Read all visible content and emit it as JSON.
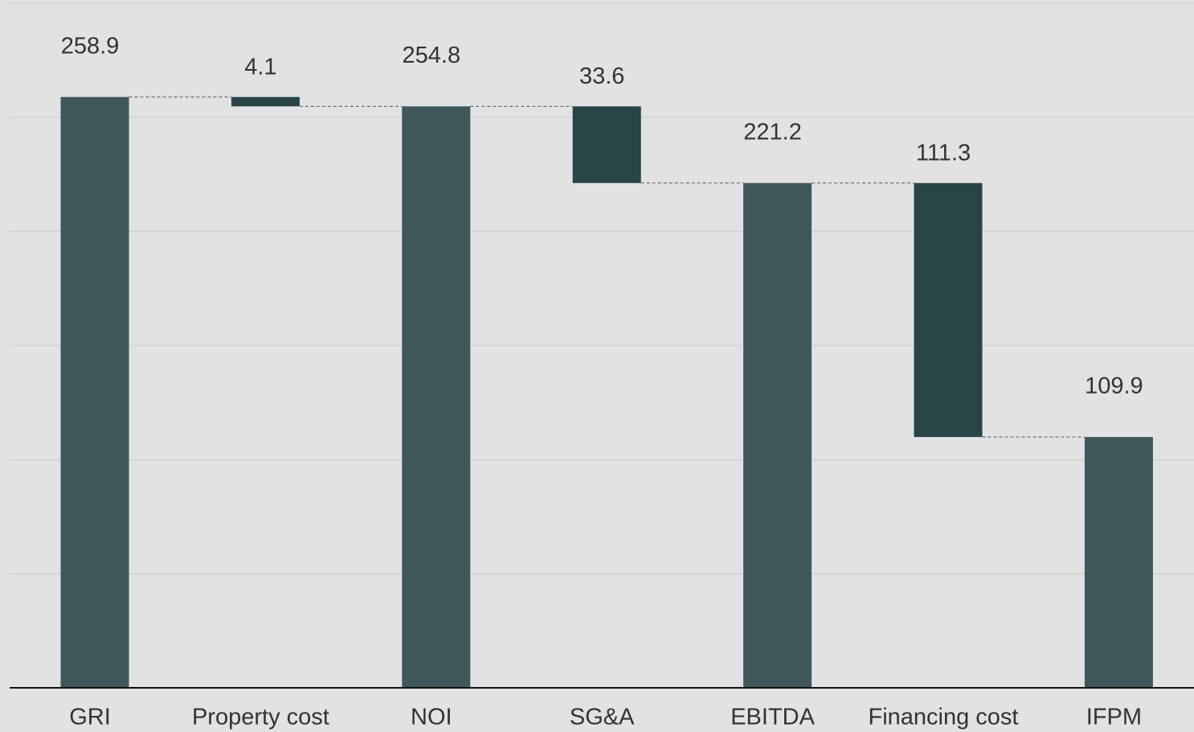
{
  "chart_data": {
    "type": "waterfall",
    "categories": [
      "GRI",
      "Property cost",
      "NOI",
      "SG&A",
      "EBITDA",
      "Financing cost",
      "IFPM"
    ],
    "values": [
      258.9,
      4.1,
      254.8,
      33.6,
      221.2,
      111.3,
      109.9
    ],
    "kinds": [
      "total",
      "decrease",
      "total",
      "decrease",
      "total",
      "decrease",
      "total"
    ],
    "colors": {
      "total": "#3f5759",
      "decrease": "#284446"
    },
    "ylim": [
      0,
      300
    ],
    "yticks": [
      0,
      50,
      100,
      150,
      200,
      250,
      300
    ],
    "grid": true
  }
}
